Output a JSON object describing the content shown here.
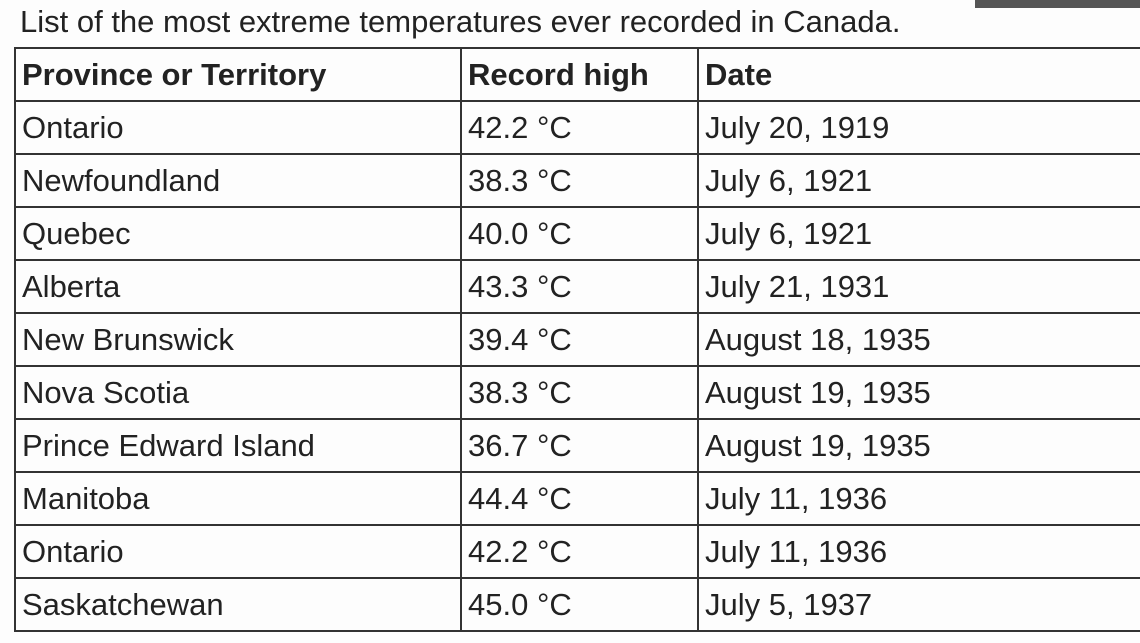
{
  "title": "List of the most extreme temperatures ever recorded in Canada.",
  "table": {
    "headers": [
      "Province or Territory",
      "Record high",
      "Date"
    ],
    "rows": [
      [
        "Ontario",
        "42.2 °C",
        "July 20, 1919"
      ],
      [
        "Newfoundland",
        "38.3 °C",
        "July 6, 1921"
      ],
      [
        "Quebec",
        "40.0 °C",
        "July 6, 1921"
      ],
      [
        "Alberta",
        "43.3 °C",
        "July 21, 1931"
      ],
      [
        "New Brunswick",
        "39.4 °C",
        "August 18, 1935"
      ],
      [
        "Nova Scotia",
        "38.3 °C",
        "August 19, 1935"
      ],
      [
        "Prince Edward Island",
        "36.7 °C",
        "August 19, 1935"
      ],
      [
        "Manitoba",
        "44.4 °C",
        "July 11, 1936"
      ],
      [
        "Ontario",
        "42.2 °C",
        "July 11, 1936"
      ],
      [
        "Saskatchewan",
        "45.0 °C",
        "July 5, 1937"
      ]
    ]
  }
}
